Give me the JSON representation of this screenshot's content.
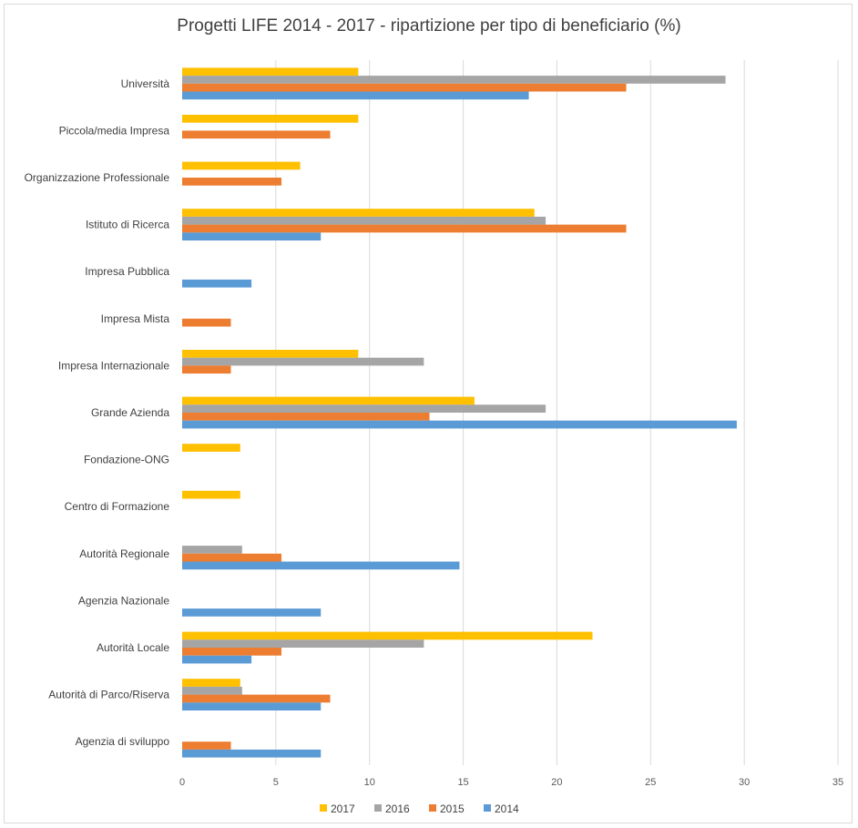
{
  "chart_data": {
    "type": "bar",
    "orientation": "horizontal",
    "title": "Progetti LIFE 2014 - 2017 - ripartizione per tipo di beneficiario (%)",
    "xlabel": "",
    "ylabel": "",
    "xlim": [
      0,
      35
    ],
    "x_ticks": [
      0,
      5,
      10,
      15,
      20,
      25,
      30,
      35
    ],
    "grid": "vertical",
    "legend_position": "bottom",
    "categories": [
      "Università",
      "Piccola/media Impresa",
      "Organizzazione Professionale",
      "Istituto di Ricerca",
      "Impresa Pubblica",
      "Impresa Mista",
      "Impresa Internazionale",
      "Grande Azienda",
      "Fondazione-ONG",
      "Centro di Formazione",
      "Autorità Regionale",
      "Agenzia Nazionale",
      "Autorità Locale",
      "Autorità di Parco/Riserva",
      "Agenzia di sviluppo"
    ],
    "series": [
      {
        "name": "2017",
        "color": "#FFC000",
        "values": [
          9.4,
          9.4,
          6.3,
          18.8,
          0,
          0,
          9.4,
          15.6,
          3.1,
          3.1,
          0,
          0,
          21.9,
          3.1,
          0
        ]
      },
      {
        "name": "2016",
        "color": "#A5A5A5",
        "values": [
          29.0,
          0,
          0,
          19.4,
          0,
          0,
          12.9,
          19.4,
          0,
          0,
          3.2,
          0,
          12.9,
          3.2,
          0
        ]
      },
      {
        "name": "2015",
        "color": "#ED7D31",
        "values": [
          23.7,
          7.9,
          5.3,
          23.7,
          0,
          2.6,
          2.6,
          13.2,
          0,
          0,
          5.3,
          0,
          5.3,
          7.9,
          2.6
        ]
      },
      {
        "name": "2014",
        "color": "#5B9BD5",
        "values": [
          18.5,
          0,
          0,
          7.4,
          3.7,
          0,
          0,
          29.6,
          0,
          0,
          14.8,
          7.4,
          3.7,
          7.4,
          7.4
        ]
      }
    ],
    "legend_order": [
      "2017",
      "2016",
      "2015",
      "2014"
    ],
    "gridline_color": "#d9d9d9"
  }
}
